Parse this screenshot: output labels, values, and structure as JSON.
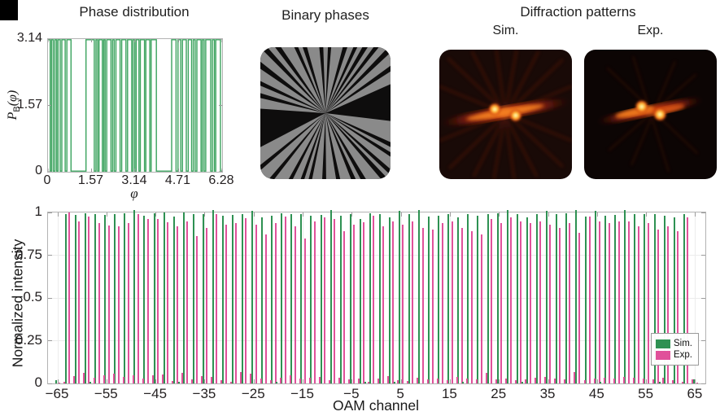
{
  "panels": {
    "phase": {
      "title": "Phase distribution",
      "xlabel": "φ",
      "ylabel_main": "P",
      "ylabel_sub": "B",
      "ylabel_rest": "(φ)"
    },
    "binary": {
      "title": "Binary phases",
      "gray": "#8a8a8a",
      "black": "#0e0d0d"
    },
    "diffraction": {
      "title": "Diffraction patterns",
      "sim_label": "Sim.",
      "exp_label": "Exp."
    },
    "spectrum": {
      "ylabel": "Normalized intensity",
      "xlabel": "OAM channel",
      "legend": [
        {
          "label": "Sim.",
          "color": "#2e9152"
        },
        {
          "label": "Exp.",
          "color": "#e0519a"
        }
      ]
    }
  },
  "colors": {
    "sim": "#2e9152",
    "exp": "#e0519a",
    "trace": "#3ba35e",
    "box": "#b3b3b3",
    "grid": "#ececec",
    "tickmark": "#9b9b9b"
  },
  "chart_data": [
    {
      "id": "phase-distribution",
      "type": "line",
      "title": "Phase distribution",
      "xlabel": "φ",
      "ylabel": "P_B(φ)",
      "xlim": [
        0,
        6.28
      ],
      "ylim": [
        0,
        3.14
      ],
      "xticks": [
        0,
        1.57,
        3.14,
        4.71,
        6.28
      ],
      "xtick_labels": [
        "0",
        "1.57",
        "3.14",
        "4.71",
        "6.28"
      ],
      "yticks": [
        0,
        1.57,
        3.14
      ],
      "ytick_labels": [
        "0",
        "1.57",
        "3.14"
      ],
      "high_value": 3.14,
      "low_value": 0,
      "line_color": "#3ba35e",
      "high_intervals": [
        [
          0.0,
          0.08
        ],
        [
          0.13,
          0.19
        ],
        [
          0.25,
          0.31
        ],
        [
          0.36,
          0.44
        ],
        [
          0.5,
          0.62
        ],
        [
          0.68,
          0.83
        ],
        [
          1.37,
          1.67
        ],
        [
          1.73,
          1.79
        ],
        [
          1.84,
          1.96
        ],
        [
          2.01,
          2.06
        ],
        [
          2.12,
          2.27
        ],
        [
          2.33,
          2.39
        ],
        [
          2.45,
          2.6
        ],
        [
          2.66,
          2.81
        ],
        [
          2.87,
          3.02
        ],
        [
          3.07,
          3.13
        ],
        [
          3.18,
          3.28
        ],
        [
          3.33,
          3.48
        ],
        [
          3.53,
          3.67
        ],
        [
          3.72,
          3.91
        ],
        [
          4.46,
          4.62
        ],
        [
          4.69,
          4.79
        ],
        [
          4.85,
          4.99
        ],
        [
          5.06,
          5.18
        ],
        [
          5.24,
          5.31
        ],
        [
          5.37,
          5.52
        ],
        [
          5.57,
          5.63
        ],
        [
          5.69,
          5.87
        ],
        [
          5.93,
          6.0
        ],
        [
          6.05,
          6.22
        ]
      ]
    },
    {
      "id": "oam-spectrum",
      "type": "bar",
      "xlabel": "OAM channel",
      "ylabel": "Normalized intensity",
      "xlim": [
        -67,
        67
      ],
      "ylim": [
        0,
        1
      ],
      "xticks": [
        -65,
        -55,
        -45,
        -35,
        -25,
        -15,
        -5,
        5,
        15,
        25,
        35,
        45,
        55,
        65
      ],
      "xtick_labels": [
        "−65",
        "−55",
        "−45",
        "−35",
        "−25",
        "−15",
        "−5",
        "5",
        "15",
        "25",
        "35",
        "45",
        "55",
        "65"
      ],
      "yticks": [
        0,
        0.25,
        0.5,
        0.75,
        1
      ],
      "ytick_labels": [
        "0",
        "0.25",
        "0.5",
        "0.75",
        "1"
      ],
      "grid": true,
      "legend_position": "right-lower",
      "categories": [
        -65,
        -63,
        -61,
        -59,
        -57,
        -55,
        -53,
        -51,
        -49,
        -47,
        -45,
        -43,
        -41,
        -39,
        -37,
        -35,
        -33,
        -31,
        -29,
        -27,
        -25,
        -23,
        -21,
        -19,
        -17,
        -15,
        -13,
        -11,
        -9,
        -7,
        -5,
        -3,
        -1,
        1,
        3,
        5,
        7,
        9,
        11,
        13,
        15,
        17,
        19,
        21,
        23,
        25,
        27,
        29,
        31,
        33,
        35,
        37,
        39,
        41,
        43,
        45,
        47,
        49,
        51,
        53,
        55,
        57,
        59,
        61,
        63,
        65
      ],
      "series": [
        {
          "name": "Sim.",
          "values": [
            0.02,
            0.99,
            0.985,
            0.995,
            0.99,
            0.985,
            0.99,
            0.995,
            1.015,
            0.98,
            0.995,
            1.0,
            0.975,
            1.0,
            0.99,
            0.99,
            1.015,
            0.98,
            0.985,
            0.99,
            1.01,
            0.97,
            0.98,
            0.995,
            0.99,
            0.99,
            0.98,
            0.985,
            1.015,
            0.98,
            0.99,
            0.96,
            0.995,
            0.99,
            0.97,
            1.01,
            0.99,
            1.015,
            0.975,
            0.98,
            0.99,
            0.97,
            0.99,
            0.98,
            0.99,
            0.995,
            1.015,
            0.99,
            0.97,
            0.99,
            1.01,
            0.99,
            0.995,
            1.015,
            0.975,
            1.01,
            0.98,
            0.985,
            1.015,
            0.99,
            0.99,
            0.99,
            0.98,
            0.97,
            0.99,
            0.025
          ]
        },
        {
          "name": "Exp.",
          "values": [
            0.005,
            1.0,
            0.95,
            0.975,
            0.94,
            0.925,
            0.92,
            0.94,
            0.99,
            0.96,
            0.96,
            0.945,
            0.92,
            0.95,
            0.86,
            0.91,
            0.99,
            0.93,
            0.94,
            0.965,
            0.93,
            0.87,
            0.94,
            0.975,
            0.92,
            0.85,
            0.95,
            0.97,
            0.96,
            0.89,
            0.93,
            0.945,
            0.98,
            0.92,
            0.95,
            0.93,
            0.95,
            0.91,
            0.9,
            0.94,
            0.95,
            0.91,
            0.89,
            0.87,
            0.96,
            0.94,
            0.97,
            0.95,
            0.94,
            0.95,
            0.93,
            0.91,
            0.94,
            0.88,
            0.975,
            0.95,
            0.94,
            0.95,
            0.95,
            0.92,
            0.94,
            0.9,
            0.92,
            0.89,
            0.97,
            0.004
          ]
        }
      ],
      "noise_channels": [
        -64,
        -62,
        -60,
        -58,
        -56,
        -54,
        -52,
        -50,
        -48,
        -46,
        -44,
        -42,
        -40,
        -38,
        -36,
        -34,
        -32,
        -30,
        -28,
        -26,
        -24,
        -22,
        -20,
        -18,
        -16,
        -14,
        -12,
        -10,
        -8,
        -6,
        -4,
        -2,
        0,
        2,
        4,
        6,
        8,
        10,
        12,
        14,
        16,
        18,
        20,
        22,
        24,
        26,
        28,
        30,
        32,
        34,
        36,
        38,
        40,
        42,
        44,
        46,
        48,
        50,
        52,
        54,
        56,
        58,
        60,
        62,
        64
      ],
      "noise_exp": [
        0.01,
        0.045,
        0.06,
        0.035,
        0.05,
        0.055,
        0.04,
        0.048,
        0.028,
        0.05,
        0.052,
        0.016,
        0.06,
        0.022,
        0.045,
        0.038,
        0.02,
        0.012,
        0.065,
        0.055,
        0.03,
        0.018,
        0.035,
        0.05,
        0.028,
        0.032,
        0.04,
        0.02,
        0.035,
        0.022,
        0.028,
        0.012,
        0.03,
        0.042,
        0.02,
        0.015,
        0.035,
        0.025,
        0.03,
        0.018,
        0.04,
        0.028,
        0.022,
        0.06,
        0.025,
        0.03,
        0.02,
        0.025,
        0.035,
        0.04,
        0.03,
        0.022,
        0.065,
        0.018,
        0.03,
        0.035,
        0.028,
        0.04,
        0.035,
        0.03,
        0.025,
        0.032,
        0.018,
        0.012,
        0.022
      ],
      "noise_sim": {
        "-58": 0.01,
        "-40": 0.008,
        "-20": 0.012,
        "-2": 0.008,
        "4": 0.01,
        "18": 0.008,
        "30": 0.01,
        "46": 0.008,
        "58": 0.01
      }
    }
  ]
}
